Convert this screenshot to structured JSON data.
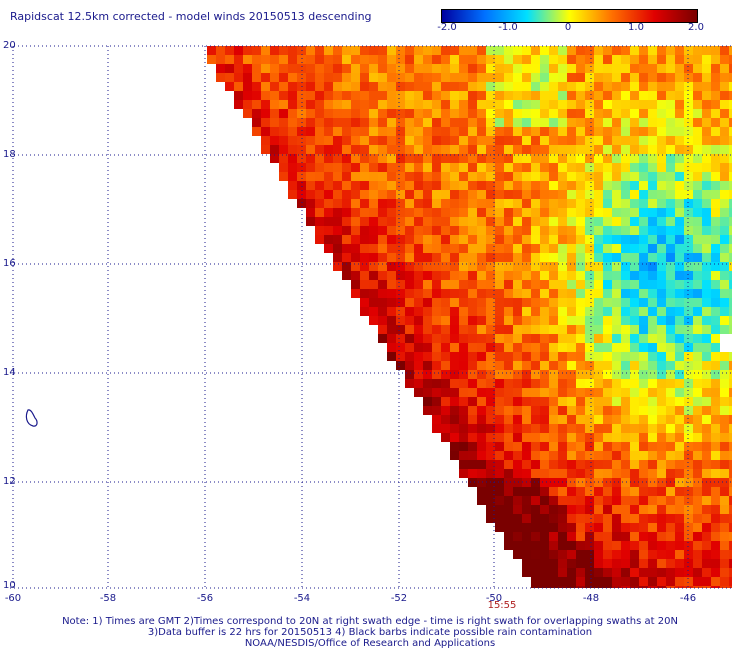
{
  "title": "Rapidscat 12.5km corrected - model winds 20150513 descending",
  "colorbar": {
    "labels": [
      "-2.0",
      "-1.0",
      "0",
      "1.0",
      "2.0"
    ],
    "colors": [
      "#0000a0",
      "#0070ff",
      "#00e0ff",
      "#ffff00",
      "#ff7000",
      "#e00000",
      "#7a0000"
    ]
  },
  "axes": {
    "x_ticks": [
      "-60",
      "-58",
      "-56",
      "-54",
      "-52",
      "-50",
      "-48",
      "-46"
    ],
    "y_ticks": [
      "20",
      "18",
      "16",
      "14",
      "12",
      "10"
    ]
  },
  "time_label": "15:55",
  "notes": {
    "line1": "Note: 1) Times are GMT 2)Times correspond to 20N at right swath edge - time is right swath for overlapping swaths at 20N",
    "line2": "3)Data buffer is 22 hrs for 20150513 4) Black barbs indicate possible rain contamination",
    "line3": "NOAA/NESDIS/Office of Research and Applications"
  }
}
